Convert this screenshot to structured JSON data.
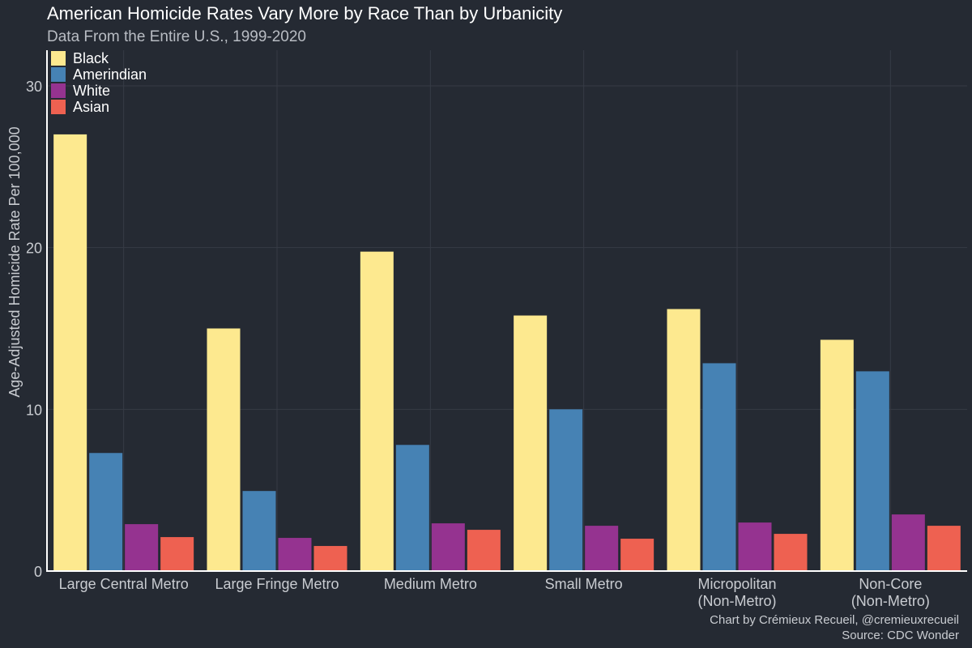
{
  "chart_data": {
    "type": "bar",
    "title": "American Homicide Rates Vary More by Race Than by Urbanicity",
    "subtitle": "Data From the Entire U.S., 1999-2020",
    "xlabel": "",
    "ylabel": "Age-Adjusted Homicide Rate Per 100,000",
    "ylim": [
      0,
      32
    ],
    "yticks": [
      0,
      10,
      20,
      30
    ],
    "grid": true,
    "legend_position": "top-left",
    "categories": [
      [
        "Large Central Metro"
      ],
      [
        "Large Fringe Metro"
      ],
      [
        "Medium Metro"
      ],
      [
        "Small Metro"
      ],
      [
        "Micropolitan",
        "(Non-Metro)"
      ],
      [
        "Non-Core",
        "(Non-Metro)"
      ]
    ],
    "series": [
      {
        "name": "Black",
        "color": "#fde98f",
        "values": [
          27.0,
          15.0,
          19.75,
          15.8,
          16.2,
          14.3
        ]
      },
      {
        "name": "Amerindian",
        "color": "#4682b4",
        "values": [
          7.3,
          4.95,
          7.8,
          10.0,
          12.85,
          12.35
        ]
      },
      {
        "name": "White",
        "color": "#953390",
        "values": [
          2.9,
          2.05,
          2.95,
          2.8,
          3.0,
          3.5
        ]
      },
      {
        "name": "Asian",
        "color": "#ee6151",
        "values": [
          2.1,
          1.55,
          2.55,
          2.0,
          2.3,
          2.8
        ]
      }
    ]
  },
  "caption": {
    "credit": "Chart by Crémieux Recueil, @cremieuxrecueil",
    "source": "Source: CDC Wonder"
  }
}
